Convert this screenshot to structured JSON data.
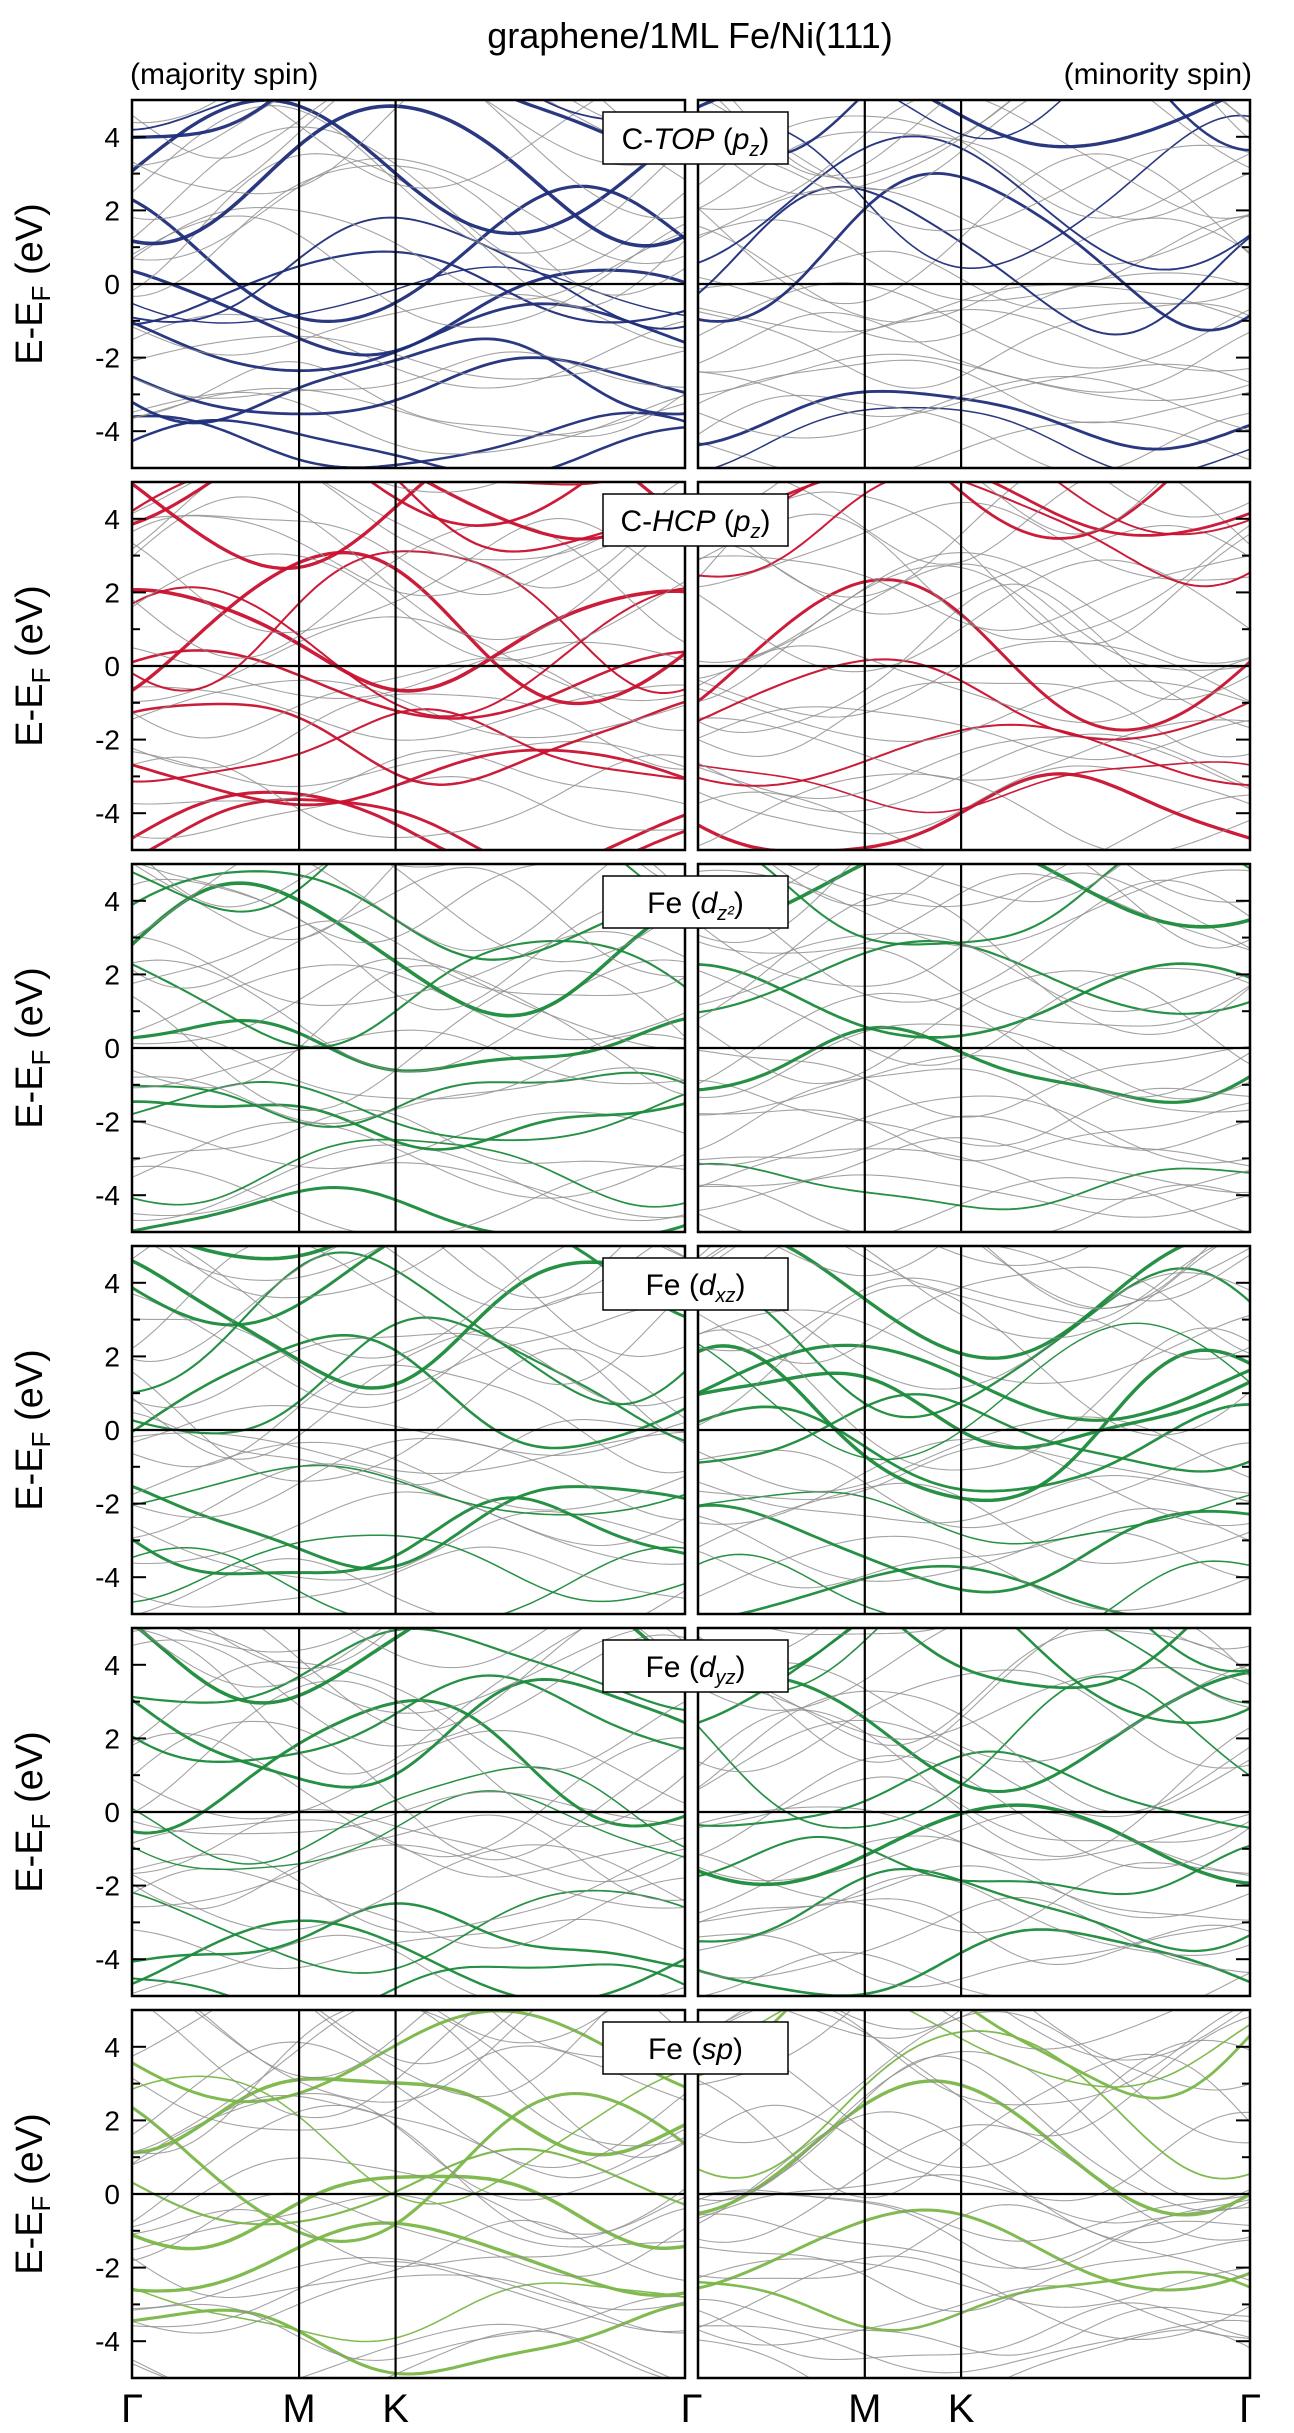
{
  "chart_data": {
    "type": "line",
    "title": "graphene/1ML Fe/Ni(111)",
    "spin_labels": {
      "left": "(majority spin)",
      "right": "(minority spin)"
    },
    "ylabel": "E-E",
    "ylabel_sub": "F",
    "ylabel_unit": " (eV)",
    "ylim": [
      -5,
      5
    ],
    "yticks": [
      "4",
      "2",
      "0",
      "-2",
      "-4"
    ],
    "ytick_values": [
      4,
      2,
      0,
      -2,
      -4
    ],
    "kpath_labels": [
      "Γ",
      "M",
      "K",
      "Γ",
      "M",
      "K",
      "Γ"
    ],
    "kpath_positions": [
      0,
      1,
      1.5774,
      3.3094,
      0,
      1,
      1.5774,
      3.3094
    ],
    "fermi_level": 0,
    "background_color": "#8c8c8c",
    "panels": [
      {
        "label_pre": "C-",
        "label_it": "TOP",
        "label_mid": " (",
        "label_it2": "p",
        "label_sub": "z",
        "label_post": ")",
        "color": "#1f2d7a"
      },
      {
        "label_pre": "C-",
        "label_it": "HCP",
        "label_mid": " (",
        "label_it2": "p",
        "label_sub": "z",
        "label_post": ")",
        "color": "#c8102e"
      },
      {
        "label_pre": "Fe",
        "label_it": "",
        "label_mid": " (",
        "label_it2": "d",
        "label_sub": "z²",
        "label_post": ")",
        "color": "#1a8a3a"
      },
      {
        "label_pre": "Fe",
        "label_it": "",
        "label_mid": " (",
        "label_it2": "d",
        "label_sub": "xz",
        "label_post": ")",
        "color": "#1a8a3a"
      },
      {
        "label_pre": "Fe",
        "label_it": "",
        "label_mid": " (",
        "label_it2": "d",
        "label_sub": "yz",
        "label_post": ")",
        "color": "#1a8a3a"
      },
      {
        "label_pre": "Fe",
        "label_it": "",
        "label_mid": " (",
        "label_it2": "sp",
        "label_sub": "",
        "label_post": ")",
        "color": "#7ab648"
      }
    ]
  }
}
